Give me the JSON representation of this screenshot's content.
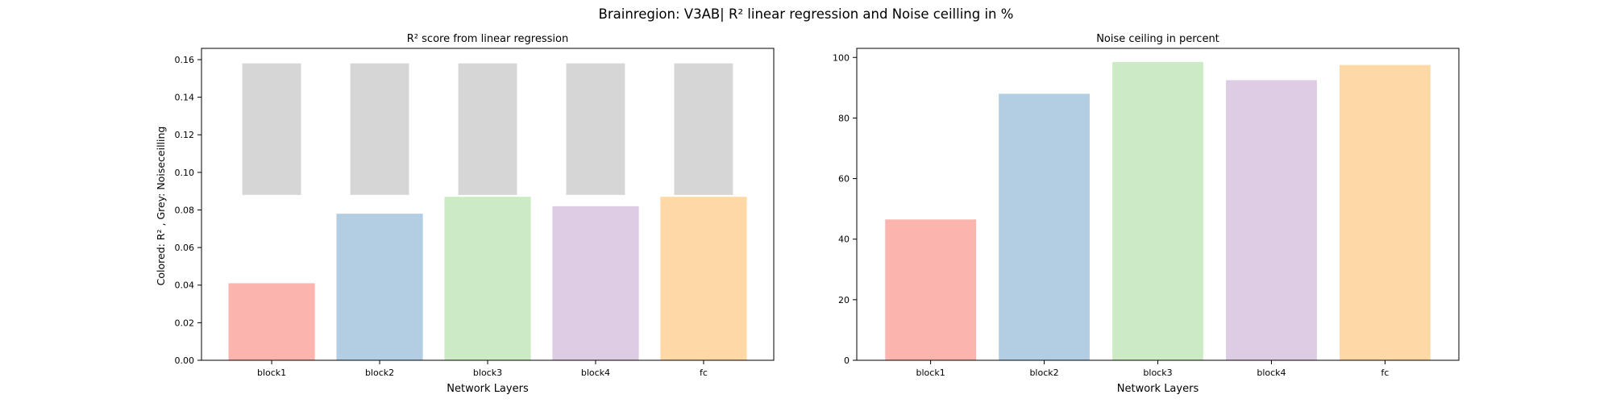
{
  "figure": {
    "title": "Brainregion: V3AB| R² linear regression and Noise ceilling in %"
  },
  "chart_data": [
    {
      "type": "bar",
      "title": "R² score from linear regression",
      "xlabel": "Network Layers",
      "ylabel": "Colored: R² , Grey: Noiseceilling",
      "categories": [
        "block1",
        "block2",
        "block3",
        "block4",
        "fc"
      ],
      "series": [
        {
          "values": [
            0.041,
            0.078,
            0.087,
            0.082,
            0.087
          ]
        },
        {
          "values": [
            0.158,
            0.158,
            0.158,
            0.158,
            0.158
          ],
          "bottom": [
            0.088,
            0.088,
            0.088,
            0.088,
            0.088
          ]
        }
      ],
      "ylim": [
        0,
        0.166
      ],
      "yticks": [
        0.0,
        0.02,
        0.04,
        0.06,
        0.08,
        0.1,
        0.12,
        0.14,
        0.16
      ],
      "ytick_labels": [
        "0.00",
        "0.02",
        "0.04",
        "0.06",
        "0.08",
        "0.10",
        "0.12",
        "0.14",
        "0.16"
      ],
      "colors": [
        "#fbb4ae",
        "#b3cde3",
        "#ccebc5",
        "#decbe4",
        "#fed9a6"
      ],
      "noise_color": "#d6d6d6",
      "grid": false,
      "legend": "none"
    },
    {
      "type": "bar",
      "title": "Noise ceiling in percent",
      "xlabel": "Network Layers",
      "ylabel": "",
      "categories": [
        "block1",
        "block2",
        "block3",
        "block4",
        "fc"
      ],
      "values": [
        46.5,
        88,
        98.5,
        92.5,
        97.5
      ],
      "ylim": [
        0,
        103
      ],
      "yticks": [
        0,
        20,
        40,
        60,
        80,
        100
      ],
      "ytick_labels": [
        "0",
        "20",
        "40",
        "60",
        "80",
        "100"
      ],
      "colors": [
        "#fbb4ae",
        "#b3cde3",
        "#ccebc5",
        "#decbe4",
        "#fed9a6"
      ],
      "grid": false,
      "legend": "none"
    }
  ]
}
